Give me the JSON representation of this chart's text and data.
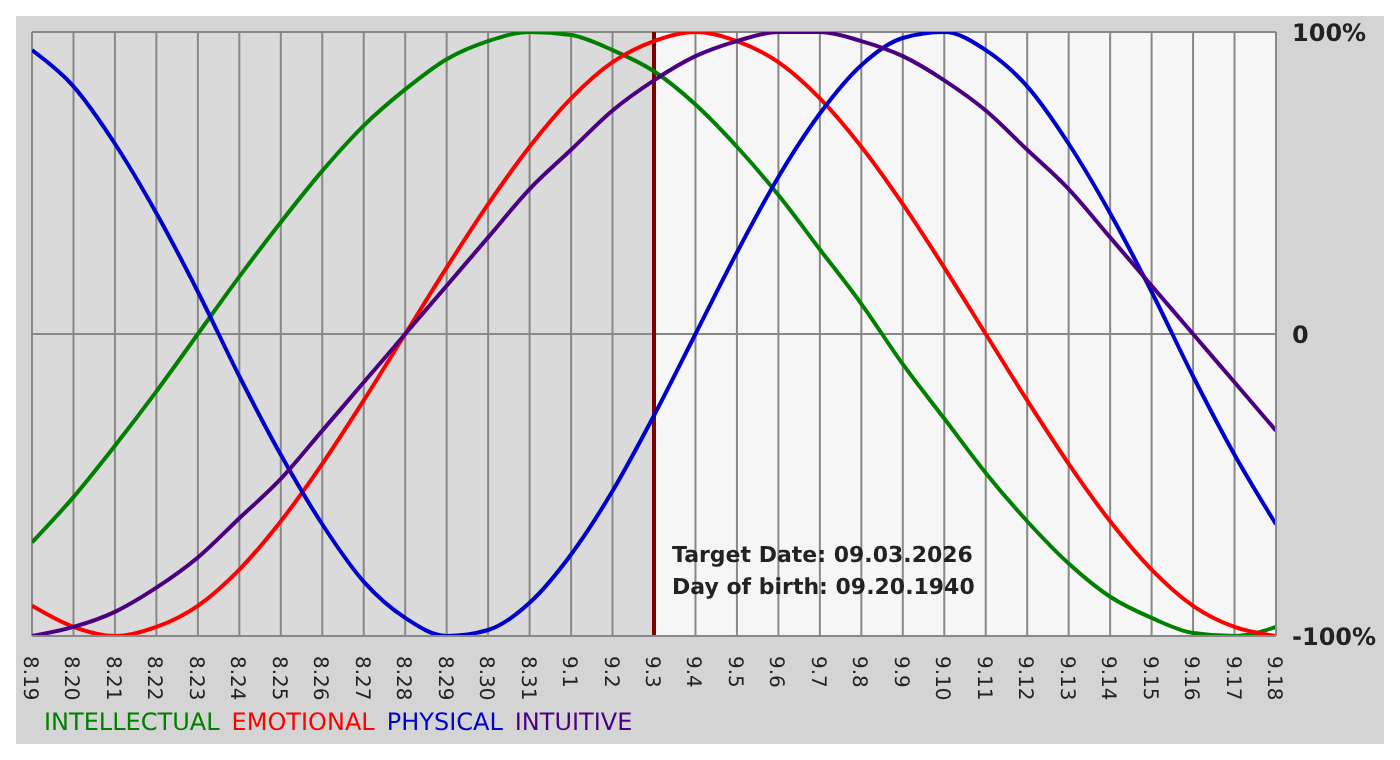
{
  "chart_data": {
    "type": "line",
    "categories": [
      "8.19",
      "8.20",
      "8.21",
      "8.22",
      "8.23",
      "8.24",
      "8.25",
      "8.26",
      "8.27",
      "8.28",
      "8.29",
      "8.30",
      "8.31",
      "9.1",
      "9.2",
      "9.3",
      "9.4",
      "9.5",
      "9.6",
      "9.7",
      "9.8",
      "9.9",
      "9.10",
      "9.11",
      "9.12",
      "9.13",
      "9.14",
      "9.15",
      "9.16",
      "9.17",
      "9.18"
    ],
    "series": [
      {
        "name": "INTELLECTUAL",
        "color": "#008000",
        "values": [
          -69,
          -54,
          -37,
          -19,
          0,
          19,
          37,
          54,
          69,
          81,
          91,
          97,
          100,
          99,
          94,
          87,
          76,
          62,
          46,
          28,
          10,
          -10,
          -28,
          -46,
          -62,
          -76,
          -87,
          -94,
          -99,
          -100,
          -97
        ]
      },
      {
        "name": "EMOTIONAL",
        "color": "#ff0000",
        "values": [
          -90,
          -97,
          -100,
          -97,
          -90,
          -78,
          -62,
          -43,
          -22,
          0,
          22,
          43,
          62,
          78,
          90,
          97,
          100,
          97,
          90,
          78,
          62,
          43,
          22,
          0,
          -22,
          -43,
          -62,
          -78,
          -90,
          -97,
          -100
        ]
      },
      {
        "name": "PHYSICAL",
        "color": "#0000cc",
        "values": [
          94,
          82,
          63,
          40,
          14,
          -14,
          -40,
          -63,
          -82,
          -94,
          -100,
          -98,
          -89,
          -73,
          -52,
          -27,
          0,
          27,
          52,
          73,
          89,
          98,
          100,
          94,
          82,
          63,
          40,
          14,
          -14,
          -40,
          -63
        ]
      },
      {
        "name": "INTUITIVE",
        "color": "#4b0082",
        "values": [
          -100,
          -97,
          -92,
          -84,
          -74,
          -61,
          -48,
          -32,
          -16,
          0,
          16,
          32,
          48,
          61,
          74,
          84,
          92,
          97,
          100,
          100,
          97,
          92,
          84,
          74,
          61,
          48,
          32,
          16,
          0,
          -16,
          -32
        ]
      }
    ],
    "ylim": [
      -100,
      100
    ],
    "yticks": [
      {
        "value": -100,
        "label": "-100%"
      },
      0,
      {
        "value": 100,
        "label": "100%"
      }
    ],
    "grid": true,
    "legend": "bottom left",
    "marker": "none",
    "line_style": "solid",
    "ref_lines": [
      {
        "axis": "x",
        "value": "9.3",
        "color": "#800000"
      }
    ],
    "bands": [
      {
        "axis": "x",
        "from": "8.19",
        "to": "9.3",
        "color": "#dadada"
      }
    ],
    "annotations": [
      "Target Date: 09.03.2026",
      "Day of birth: 09.20.1940"
    ]
  }
}
